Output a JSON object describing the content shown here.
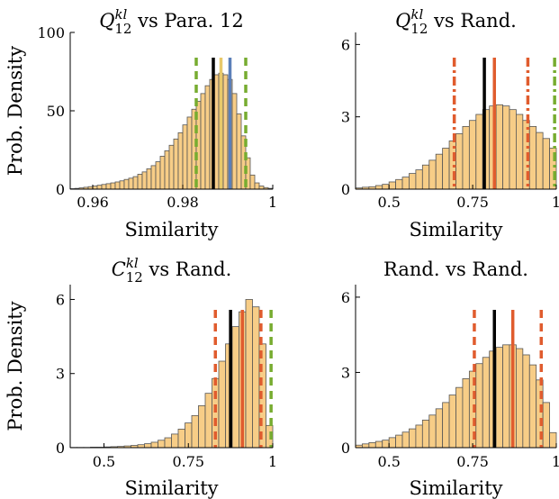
{
  "chart_data": [
    {
      "type": "bar",
      "title": "Q₁₂ᵏˡ vs Para. 12",
      "title_parts": {
        "base": "Q",
        "sub": "12",
        "sup": "kl",
        "rest": " vs Para. 12"
      },
      "xlabel": "Similarity",
      "ylabel": "Prob. Density",
      "xlim": [
        0.955,
        1.0
      ],
      "ylim": [
        0,
        100
      ],
      "xticks": [
        0.96,
        0.98,
        1.0
      ],
      "xtick_labels": [
        "0.96",
        "0.98",
        "1"
      ],
      "yticks": [
        0,
        50,
        100
      ],
      "ytick_labels": [
        "0",
        "50",
        "100"
      ],
      "histogram": {
        "edges_start": 0.955,
        "bin_width": 0.001,
        "densities": [
          0.3,
          0.5,
          0.8,
          1.2,
          1.6,
          2,
          2.5,
          3,
          3.5,
          4,
          4.6,
          5.3,
          6.2,
          7,
          8,
          9.5,
          11,
          13,
          15,
          17.5,
          21,
          24.5,
          28,
          32,
          36,
          41,
          46,
          51,
          56,
          61,
          66,
          70,
          73,
          74,
          73,
          70,
          61,
          48,
          34,
          20,
          9,
          4,
          2,
          1,
          0.5
        ]
      },
      "vlines": [
        {
          "x": 0.983,
          "color": "#77ac30",
          "style": "dashed"
        },
        {
          "x": 0.994,
          "color": "#77ac30",
          "style": "dashed"
        },
        {
          "x": 0.9868,
          "color": "#000000",
          "style": "solid"
        },
        {
          "x": 0.9885,
          "color": "#e8c96a",
          "style": "solid"
        },
        {
          "x": 0.9905,
          "color": "#5b7fb8",
          "style": "solid"
        }
      ]
    },
    {
      "type": "bar",
      "title": "Q₁₂ᵏˡ vs Rand.",
      "title_parts": {
        "base": "Q",
        "sub": "12",
        "sup": "kl",
        "rest": " vs Rand."
      },
      "xlabel": "Similarity",
      "ylabel": "",
      "xlim": [
        0.4,
        1.0
      ],
      "ylim": [
        0,
        6.5
      ],
      "xticks": [
        0.5,
        0.75,
        1.0
      ],
      "xtick_labels": [
        "0.5",
        "0.75",
        "1"
      ],
      "yticks": [
        0,
        3,
        6
      ],
      "ytick_labels": [
        "0",
        "3",
        "6"
      ],
      "histogram": {
        "edges_start": 0.4,
        "bin_width": 0.02,
        "densities": [
          0.05,
          0.08,
          0.1,
          0.15,
          0.2,
          0.3,
          0.4,
          0.5,
          0.65,
          0.8,
          1,
          1.2,
          1.45,
          1.7,
          2,
          2.3,
          2.6,
          2.85,
          3.1,
          3.3,
          3.45,
          3.5,
          3.45,
          3.3,
          3.1,
          2.85,
          2.6,
          2.35,
          2.1,
          1.7
        ]
      },
      "vlines": [
        {
          "x": 0.695,
          "color": "#e05c2e",
          "style": "dashdot"
        },
        {
          "x": 0.785,
          "color": "#000000",
          "style": "solid"
        },
        {
          "x": 0.815,
          "color": "#e05c2e",
          "style": "solid"
        },
        {
          "x": 0.915,
          "color": "#e05c2e",
          "style": "dashdot"
        },
        {
          "x": 0.995,
          "color": "#77ac30",
          "style": "dashdot"
        }
      ]
    },
    {
      "type": "bar",
      "title": "C₁₂ᵏˡ vs Rand.",
      "title_parts": {
        "base": "C",
        "sub": "12",
        "sup": "kl",
        "rest": " vs Rand."
      },
      "xlabel": "Similarity",
      "ylabel": "Prob. Density",
      "xlim": [
        0.4,
        1.0
      ],
      "ylim": [
        0,
        6.6
      ],
      "xticks": [
        0.5,
        0.75,
        1.0
      ],
      "xtick_labels": [
        "0.5",
        "0.75",
        "1"
      ],
      "yticks": [
        0,
        3,
        6
      ],
      "ytick_labels": [
        "0",
        "3",
        "6"
      ],
      "histogram": {
        "edges_start": 0.4,
        "bin_width": 0.02,
        "densities": [
          0.01,
          0.01,
          0.01,
          0.02,
          0.02,
          0.03,
          0.04,
          0.05,
          0.07,
          0.09,
          0.12,
          0.16,
          0.22,
          0.3,
          0.4,
          0.55,
          0.75,
          1,
          1.3,
          1.7,
          2.2,
          2.8,
          3.5,
          4.2,
          4.9,
          5.5,
          6,
          5.7,
          4.2,
          0.9
        ]
      },
      "vlines": [
        {
          "x": 0.83,
          "color": "#e05c2e",
          "style": "dashed"
        },
        {
          "x": 0.875,
          "color": "#000000",
          "style": "solid"
        },
        {
          "x": 0.91,
          "color": "#e05c2e",
          "style": "solid"
        },
        {
          "x": 0.965,
          "color": "#e05c2e",
          "style": "dashed"
        },
        {
          "x": 0.995,
          "color": "#77ac30",
          "style": "dashed"
        }
      ]
    },
    {
      "type": "bar",
      "title": "Rand. vs Rand.",
      "xlabel": "Similarity",
      "ylabel": "",
      "xlim": [
        0.4,
        1.0
      ],
      "ylim": [
        0,
        6.5
      ],
      "xticks": [
        0.5,
        0.75,
        1.0
      ],
      "xtick_labels": [
        "0.5",
        "0.75",
        "1"
      ],
      "yticks": [
        0,
        3,
        6
      ],
      "ytick_labels": [
        "0",
        "3",
        "6"
      ],
      "histogram": {
        "edges_start": 0.4,
        "bin_width": 0.02,
        "densities": [
          0.1,
          0.15,
          0.2,
          0.25,
          0.3,
          0.4,
          0.5,
          0.62,
          0.75,
          0.9,
          1.1,
          1.3,
          1.55,
          1.8,
          2.1,
          2.4,
          2.75,
          3.05,
          3.35,
          3.6,
          3.85,
          4,
          4.1,
          4.1,
          3.95,
          3.7,
          3.3,
          2.7,
          1.8,
          0.6
        ]
      },
      "vlines": [
        {
          "x": 0.755,
          "color": "#e05c2e",
          "style": "dashed"
        },
        {
          "x": 0.815,
          "color": "#000000",
          "style": "solid"
        },
        {
          "x": 0.87,
          "color": "#e05c2e",
          "style": "solid"
        },
        {
          "x": 0.955,
          "color": "#e05c2e",
          "style": "dashed"
        }
      ]
    }
  ],
  "colors": {
    "bar_fill": "#f7cd87",
    "bar_edge": "#555555"
  }
}
